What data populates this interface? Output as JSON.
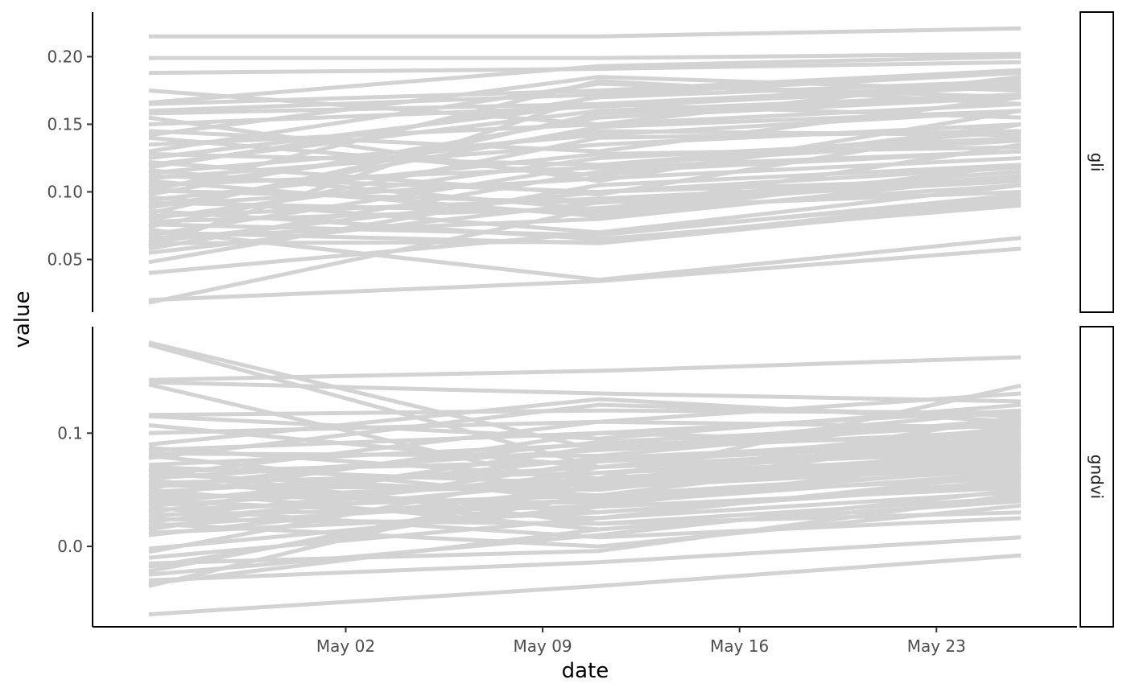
{
  "chart_data": {
    "type": "line",
    "xlabel": "date",
    "ylabel": "value",
    "line_color": "#d3d3d3",
    "x_dates": [
      "2023-04-25",
      "2023-05-11",
      "2023-05-26"
    ],
    "xlim": [
      "2023-04-23",
      "2023-05-28"
    ],
    "x_ticks": [
      {
        "date": "2023-05-02",
        "label": "May 02"
      },
      {
        "date": "2023-05-09",
        "label": "May 09"
      },
      {
        "date": "2023-05-16",
        "label": "May 16"
      },
      {
        "date": "2023-05-23",
        "label": "May 23"
      }
    ],
    "panels": [
      {
        "label": "gli",
        "ylim": [
          0.011,
          0.233
        ],
        "y_ticks": [
          {
            "value": 0.05,
            "label": "0.05"
          },
          {
            "value": 0.1,
            "label": "0.10"
          },
          {
            "value": 0.15,
            "label": "0.15"
          },
          {
            "value": 0.2,
            "label": "0.20"
          }
        ],
        "series": [
          [
            0.215,
            0.215,
            0.221
          ],
          [
            0.199,
            0.199,
            0.202
          ],
          [
            0.188,
            0.191,
            0.196
          ],
          [
            0.175,
            0.15,
            0.185
          ],
          [
            0.166,
            0.193,
            0.2
          ],
          [
            0.165,
            0.175,
            0.19
          ],
          [
            0.16,
            0.172,
            0.188
          ],
          [
            0.158,
            0.165,
            0.18
          ],
          [
            0.155,
            0.108,
            0.16
          ],
          [
            0.15,
            0.163,
            0.178
          ],
          [
            0.145,
            0.13,
            0.17
          ],
          [
            0.142,
            0.185,
            0.175
          ],
          [
            0.14,
            0.112,
            0.15
          ],
          [
            0.135,
            0.15,
            0.165
          ],
          [
            0.13,
            0.18,
            0.17
          ],
          [
            0.128,
            0.12,
            0.145
          ],
          [
            0.125,
            0.165,
            0.155
          ],
          [
            0.122,
            0.098,
            0.15
          ],
          [
            0.12,
            0.16,
            0.172
          ],
          [
            0.118,
            0.17,
            0.182
          ],
          [
            0.116,
            0.087,
            0.135
          ],
          [
            0.114,
            0.142,
            0.16
          ],
          [
            0.112,
            0.1,
            0.11
          ],
          [
            0.11,
            0.135,
            0.15
          ],
          [
            0.108,
            0.082,
            0.12
          ],
          [
            0.105,
            0.118,
            0.13
          ],
          [
            0.103,
            0.145,
            0.142
          ],
          [
            0.101,
            0.092,
            0.115
          ],
          [
            0.1,
            0.182,
            0.165
          ],
          [
            0.098,
            0.155,
            0.17
          ],
          [
            0.096,
            0.07,
            0.095
          ],
          [
            0.094,
            0.128,
            0.133
          ],
          [
            0.092,
            0.085,
            0.105
          ],
          [
            0.09,
            0.11,
            0.125
          ],
          [
            0.088,
            0.148,
            0.16
          ],
          [
            0.086,
            0.065,
            0.09
          ],
          [
            0.084,
            0.158,
            0.172
          ],
          [
            0.082,
            0.095,
            0.11
          ],
          [
            0.08,
            0.125,
            0.14
          ],
          [
            0.078,
            0.088,
            0.1
          ],
          [
            0.076,
            0.068,
            0.098
          ],
          [
            0.074,
            0.14,
            0.145
          ],
          [
            0.072,
            0.035,
            0.066
          ],
          [
            0.07,
            0.062,
            0.092
          ],
          [
            0.068,
            0.12,
            0.138
          ],
          [
            0.066,
            0.08,
            0.112
          ],
          [
            0.063,
            0.1,
            0.118
          ],
          [
            0.062,
            0.063,
            0.095
          ],
          [
            0.06,
            0.172,
            0.19
          ],
          [
            0.058,
            0.115,
            0.13
          ],
          [
            0.055,
            0.092,
            0.108
          ],
          [
            0.048,
            0.105,
            0.12
          ],
          [
            0.04,
            0.07,
            0.105
          ],
          [
            0.02,
            0.034,
            0.058
          ],
          [
            0.018,
            0.088,
            0.112
          ]
        ]
      },
      {
        "label": "gndvi",
        "ylim": [
          -0.071,
          0.194
        ],
        "y_ticks": [
          {
            "value": 0.0,
            "label": "0.0"
          },
          {
            "value": 0.1,
            "label": "0.1"
          }
        ],
        "series": [
          [
            0.18,
            0.085,
            0.12
          ],
          [
            0.178,
            0.07,
            0.09
          ],
          [
            0.147,
            0.155,
            0.167
          ],
          [
            0.145,
            0.135,
            0.128
          ],
          [
            0.143,
            0.05,
            0.1
          ],
          [
            0.116,
            0.12,
            0.118
          ],
          [
            0.115,
            0.095,
            0.125
          ],
          [
            0.107,
            0.07,
            0.085
          ],
          [
            0.1,
            0.11,
            0.105
          ],
          [
            0.09,
            0.13,
            0.11
          ],
          [
            0.087,
            0.06,
            0.08
          ],
          [
            0.085,
            0.1,
            0.09
          ],
          [
            0.082,
            0.08,
            0.113
          ],
          [
            0.08,
            0.04,
            0.07
          ],
          [
            0.078,
            0.125,
            0.115
          ],
          [
            0.072,
            0.09,
            0.097
          ],
          [
            0.07,
            0.055,
            0.075
          ],
          [
            0.068,
            0.02,
            0.03
          ],
          [
            0.066,
            0.075,
            0.092
          ],
          [
            0.064,
            0.045,
            0.06
          ],
          [
            0.062,
            0.11,
            0.135
          ],
          [
            0.06,
            0.085,
            0.102
          ],
          [
            0.058,
            0.03,
            0.055
          ],
          [
            0.056,
            0.065,
            0.078
          ],
          [
            0.054,
            0.05,
            0.087
          ],
          [
            0.052,
            0.092,
            0.11
          ],
          [
            0.05,
            0.015,
            0.04
          ],
          [
            0.048,
            0.07,
            0.083
          ],
          [
            0.046,
            0.038,
            0.065
          ],
          [
            0.044,
            0.1,
            0.12
          ],
          [
            0.042,
            0.055,
            0.072
          ],
          [
            0.04,
            0.025,
            0.048
          ],
          [
            0.038,
            0.078,
            0.095
          ],
          [
            0.036,
            0.06,
            0.082
          ],
          [
            0.034,
            0.008,
            0.025
          ],
          [
            0.032,
            0.045,
            0.068
          ],
          [
            0.03,
            0.088,
            0.108
          ],
          [
            0.028,
            0.035,
            0.052
          ],
          [
            0.026,
            0.065,
            0.088
          ],
          [
            0.024,
            0.02,
            0.043
          ],
          [
            0.022,
            0.058,
            0.076
          ],
          [
            0.02,
            0.0,
            0.036
          ],
          [
            0.018,
            0.042,
            0.062
          ],
          [
            0.015,
            0.075,
            0.1
          ],
          [
            0.012,
            0.03,
            0.058
          ],
          [
            0.01,
            0.052,
            0.07
          ],
          [
            -0.002,
            0.035,
            0.08
          ],
          [
            -0.005,
            0.07,
            0.105
          ],
          [
            -0.01,
            0.025,
            0.064
          ],
          [
            -0.015,
            -0.004,
            0.046
          ],
          [
            -0.018,
            0.045,
            0.09
          ],
          [
            -0.022,
            0.055,
            0.115
          ],
          [
            -0.025,
            0.01,
            0.05
          ],
          [
            -0.03,
            -0.014,
            0.008
          ],
          [
            -0.033,
            0.015,
            0.04
          ],
          [
            -0.035,
            0.06,
            0.142
          ],
          [
            -0.06,
            -0.035,
            -0.008
          ]
        ]
      }
    ]
  }
}
